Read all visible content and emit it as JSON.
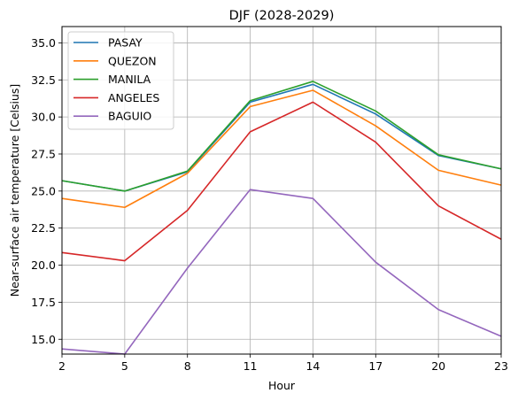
{
  "chart_data": {
    "type": "line",
    "title": "DJF (2028-2029)",
    "xlabel": "Hour",
    "ylabel": "Near-surface air temperature [Celsius]",
    "x": [
      2,
      5,
      8,
      11,
      14,
      17,
      20,
      23
    ],
    "xticks": [
      "2",
      "5",
      "8",
      "11",
      "14",
      "17",
      "20",
      "23"
    ],
    "yticks": [
      "15.0",
      "17.5",
      "20.0",
      "22.5",
      "25.0",
      "27.5",
      "30.0",
      "32.5",
      "35.0"
    ],
    "xlim": [
      2,
      23
    ],
    "ylim": [
      14.0,
      36.1
    ],
    "grid": true,
    "legend_position": "top-left",
    "series": [
      {
        "name": "PASAY",
        "color": "#1f77b4",
        "values": [
          25.7,
          25.0,
          26.3,
          31.0,
          32.2,
          30.2,
          27.4,
          26.5
        ]
      },
      {
        "name": "QUEZON",
        "color": "#ff7f0e",
        "values": [
          24.5,
          23.9,
          26.2,
          30.7,
          31.8,
          29.4,
          26.4,
          25.4
        ]
      },
      {
        "name": "MANILA",
        "color": "#2ca02c",
        "values": [
          25.7,
          25.0,
          26.35,
          31.1,
          32.4,
          30.4,
          27.45,
          26.5
        ]
      },
      {
        "name": "ANGELES",
        "color": "#d62728",
        "values": [
          20.85,
          20.3,
          23.7,
          29.0,
          31.0,
          28.3,
          24.0,
          21.75
        ]
      },
      {
        "name": "BAGUIO",
        "color": "#9467bd",
        "values": [
          14.35,
          14.0,
          19.8,
          25.1,
          24.5,
          20.2,
          17.0,
          15.2
        ]
      }
    ]
  }
}
